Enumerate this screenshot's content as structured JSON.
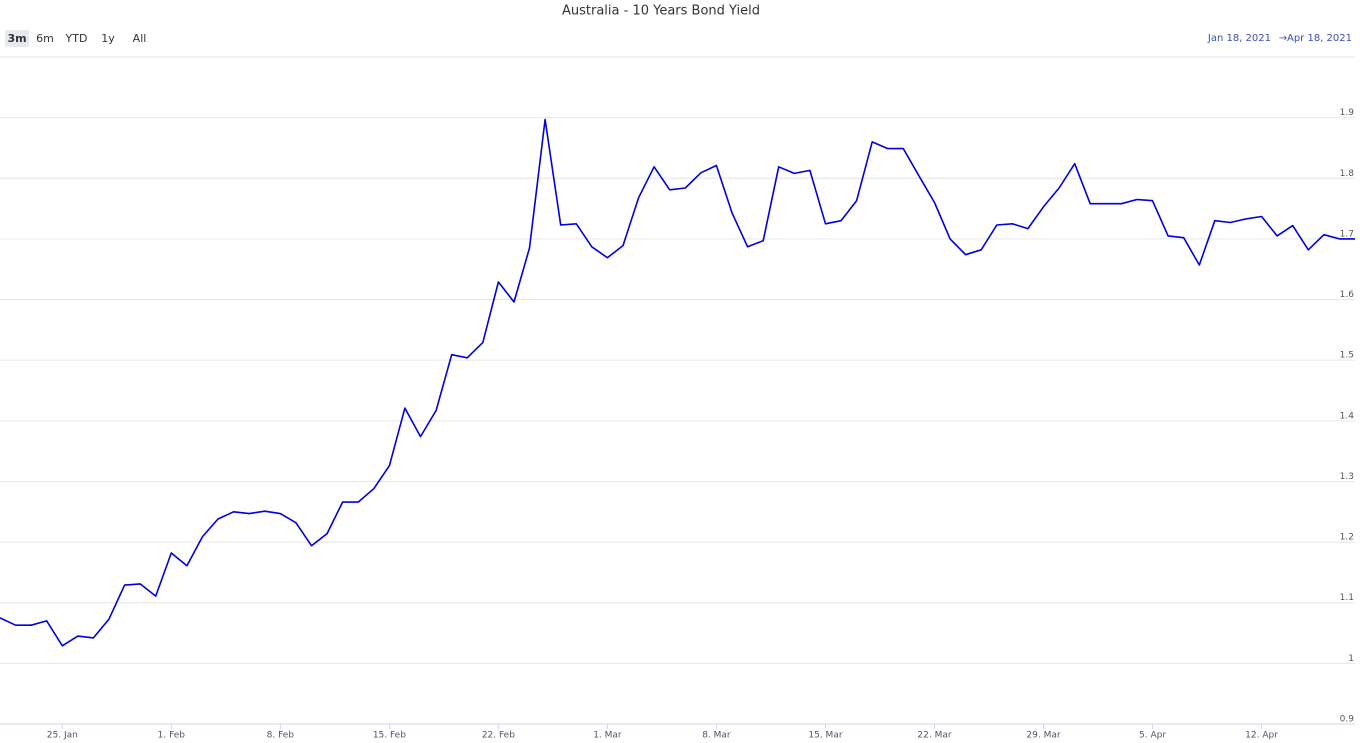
{
  "chart_data": {
    "type": "line",
    "title": "Australia - 10 Years Bond Yield",
    "range_buttons": [
      "3m",
      "6m",
      "YTD",
      "1y",
      "All"
    ],
    "selected_range": 0,
    "range_from": "Jan 18, 2021",
    "range_separator": "→",
    "range_to": "Apr 18, 2021",
    "x": [
      "21. Jan",
      "22. Jan",
      "23. Jan",
      "24. Jan",
      "25. Jan",
      "26. Jan",
      "27. Jan",
      "28. Jan",
      "29. Jan",
      "30. Jan",
      "31. Jan",
      "1. Feb",
      "2. Feb",
      "3. Feb",
      "4. Feb",
      "5. Feb",
      "6. Feb",
      "7. Feb",
      "8. Feb",
      "9. Feb",
      "10. Feb",
      "11. Feb",
      "12. Feb",
      "13. Feb",
      "14. Feb",
      "15. Feb",
      "16. Feb",
      "17. Feb",
      "18. Feb",
      "19. Feb",
      "20. Feb",
      "21. Feb",
      "22. Feb",
      "23. Feb",
      "24. Feb",
      "25. Feb",
      "26. Feb",
      "27. Feb",
      "28. Feb",
      "1. Mar",
      "2. Mar",
      "3. Mar",
      "4. Mar",
      "5. Mar",
      "6. Mar",
      "7. Mar",
      "8. Mar",
      "9. Mar",
      "10. Mar",
      "11. Mar",
      "12. Mar",
      "13. Mar",
      "14. Mar",
      "15. Mar",
      "16. Mar",
      "17. Mar",
      "18. Mar",
      "19. Mar",
      "20. Mar",
      "21. Mar",
      "22. Mar",
      "23. Mar",
      "24. Mar",
      "25. Mar",
      "26. Mar",
      "27. Mar",
      "28. Mar",
      "29. Mar",
      "30. Mar",
      "31. Mar",
      "1. Apr",
      "2. Apr",
      "3. Apr",
      "4. Apr",
      "5. Apr",
      "6. Apr",
      "7. Apr",
      "8. Apr",
      "9. Apr",
      "10. Apr",
      "11. Apr",
      "12. Apr",
      "13. Apr",
      "14. Apr",
      "15. Apr",
      "16. Apr",
      "17. Apr",
      "18. Apr"
    ],
    "series": [
      {
        "name": "Australia - 10 Years Bond Yield",
        "color": "#0000e0",
        "values": [
          1.075,
          1.063,
          1.063,
          1.07,
          1.029,
          1.045,
          1.042,
          1.073,
          1.129,
          1.131,
          1.111,
          1.182,
          1.161,
          1.209,
          1.238,
          1.25,
          1.247,
          1.251,
          1.247,
          1.232,
          1.194,
          1.214,
          1.266,
          1.266,
          1.288,
          1.326,
          1.421,
          1.374,
          1.417,
          1.509,
          1.504,
          1.529,
          1.629,
          1.596,
          1.685,
          1.897,
          1.723,
          1.725,
          1.687,
          1.669,
          1.689,
          1.768,
          1.819,
          1.781,
          1.784,
          1.809,
          1.821,
          1.743,
          1.687,
          1.697,
          1.819,
          1.808,
          1.813,
          1.725,
          1.73,
          1.763,
          1.86,
          1.849,
          1.849,
          1.804,
          1.76,
          1.7,
          1.674,
          1.682,
          1.723,
          1.725,
          1.717,
          1.753,
          1.784,
          1.824,
          1.758,
          1.758,
          1.758,
          1.765,
          1.763,
          1.705,
          1.702,
          1.657,
          1.73,
          1.727,
          1.733,
          1.737,
          1.705,
          1.722,
          1.682,
          1.707,
          1.7,
          1.7
        ]
      }
    ],
    "xlim": [
      "21. Jan",
      "18. Apr"
    ],
    "xticks": [
      "25. Jan",
      "1. Feb",
      "8. Feb",
      "15. Feb",
      "22. Feb",
      "1. Mar",
      "8. Mar",
      "15. Mar",
      "22. Mar",
      "29. Mar",
      "5. Apr",
      "12. Apr"
    ],
    "ylim": [
      0.9,
      2.0
    ],
    "yticks": [
      0.9,
      1,
      1.1,
      1.2,
      1.3,
      1.4,
      1.5,
      1.6,
      1.7,
      1.8,
      1.9
    ],
    "grid": true
  }
}
